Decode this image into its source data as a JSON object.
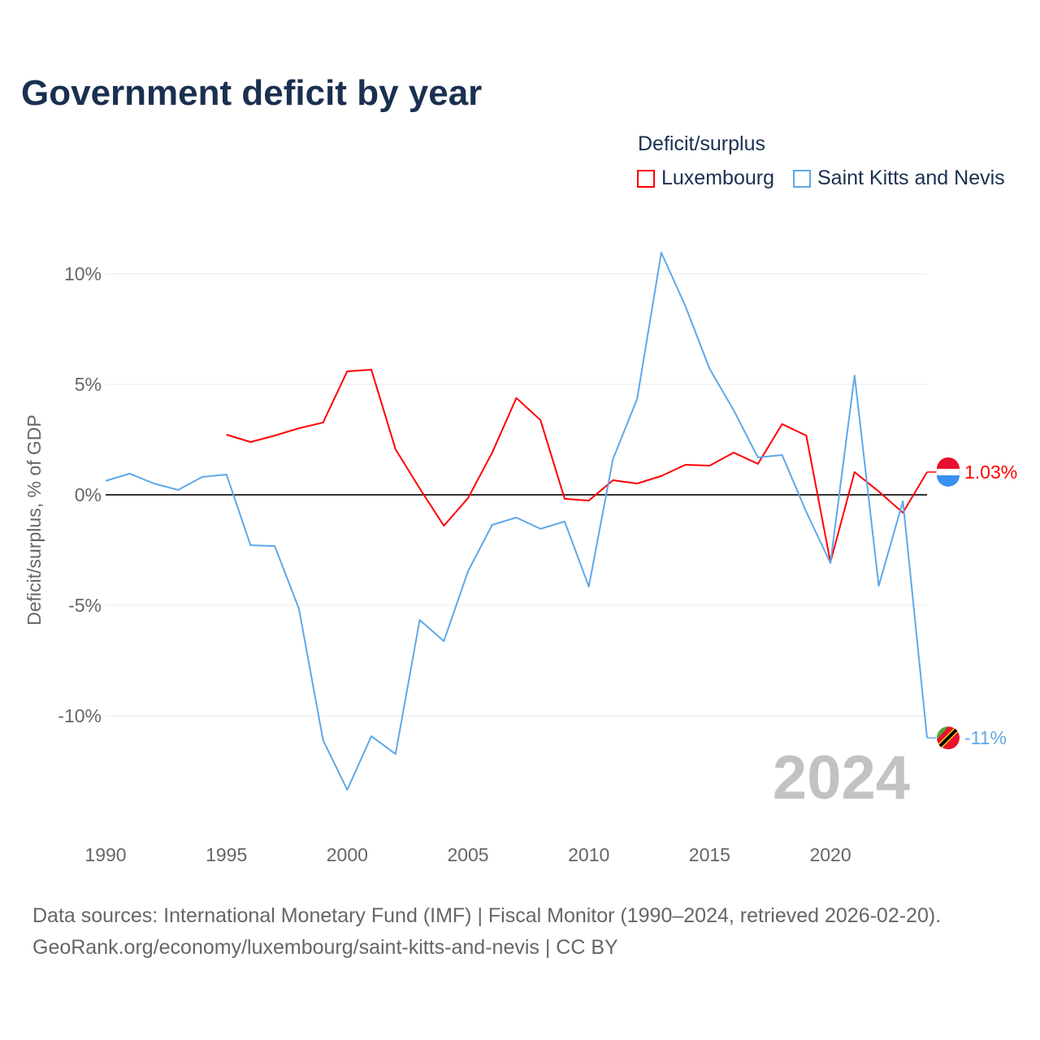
{
  "chart_data": {
    "type": "line",
    "title": "Government deficit by year",
    "ylabel": "Deficit/surplus, % of GDP",
    "xlabel": "",
    "xlim": [
      1990,
      2024
    ],
    "ylim": [
      -14.5,
      12
    ],
    "x_ticks": [
      1990,
      1995,
      2000,
      2005,
      2010,
      2015,
      2020
    ],
    "y_ticks": [
      10,
      5,
      0,
      -5,
      -10
    ],
    "y_tick_labels": [
      "10%",
      "5%",
      "0%",
      "-5%",
      "-10%"
    ],
    "legend_title": "Deficit/surplus",
    "legend_position": "top-right",
    "year_label": "2024",
    "series": [
      {
        "name": "Luxembourg",
        "color": "#ff0000",
        "end_label": "1.03%",
        "x": [
          1995,
          1996,
          1997,
          1998,
          1999,
          2000,
          2001,
          2002,
          2003,
          2004,
          2005,
          2006,
          2007,
          2008,
          2009,
          2010,
          2011,
          2012,
          2013,
          2014,
          2015,
          2016,
          2017,
          2018,
          2019,
          2020,
          2021,
          2022,
          2023,
          2024
        ],
        "values": [
          2.72,
          2.39,
          2.68,
          3.01,
          3.27,
          5.59,
          5.66,
          2.06,
          0.29,
          -1.4,
          -0.15,
          1.91,
          4.38,
          3.38,
          -0.18,
          -0.26,
          0.66,
          0.51,
          0.85,
          1.36,
          1.32,
          1.91,
          1.4,
          3.2,
          2.68,
          -3.05,
          1.03,
          0.15,
          -0.81,
          1.03
        ]
      },
      {
        "name": "Saint Kitts and Nevis",
        "color": "#5fa8e8",
        "end_label": "-11%",
        "x": [
          1990,
          1991,
          1992,
          1993,
          1994,
          1995,
          1996,
          1997,
          1998,
          1999,
          2000,
          2001,
          2002,
          2003,
          2004,
          2005,
          2006,
          2007,
          2008,
          2009,
          2010,
          2011,
          2012,
          2013,
          2014,
          2015,
          2016,
          2017,
          2018,
          2019,
          2020,
          2021,
          2022,
          2023,
          2024
        ],
        "values": [
          0.63,
          0.96,
          0.51,
          0.22,
          0.81,
          0.92,
          -2.28,
          -2.32,
          -5.15,
          -11.1,
          -13.35,
          -10.92,
          -11.73,
          -5.66,
          -6.62,
          -3.46,
          -1.36,
          -1.03,
          -1.54,
          -1.21,
          -4.15,
          1.62,
          4.34,
          10.96,
          8.53,
          5.7,
          3.82,
          1.69,
          1.8,
          -0.77,
          -3.09,
          5.4,
          -4.12,
          -0.29,
          -11.0
        ]
      }
    ]
  },
  "footer": {
    "line1": "Data sources: International Monetary Fund (IMF) | Fiscal Monitor (1990–2024, retrieved 2026-02-20).",
    "line2": "GeoRank.org/economy/luxembourg/saint-kitts-and-nevis | CC BY"
  }
}
